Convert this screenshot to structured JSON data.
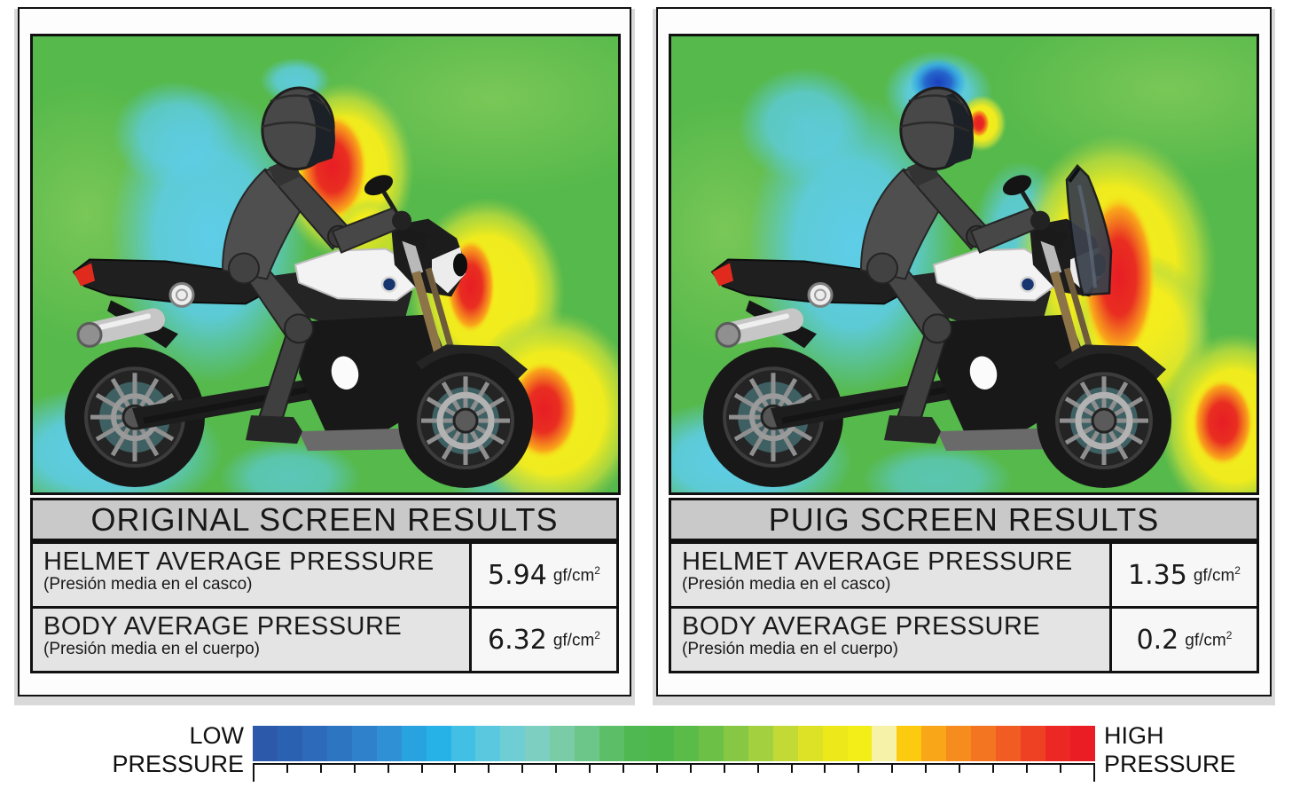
{
  "panels": [
    {
      "title": "ORIGINAL SCREEN RESULTS",
      "rows": [
        {
          "label": "HELMET AVERAGE PRESSURE",
          "sublabel": "(Presión media en el casco)",
          "value": "5.94",
          "unit": "gf/cm",
          "exp": "2"
        },
        {
          "label": "BODY AVERAGE PRESSURE",
          "sublabel": "(Presión media en el cuerpo)",
          "value": "6.32",
          "unit": "gf/cm",
          "exp": "2"
        }
      ]
    },
    {
      "title": "PUIG SCREEN RESULTS",
      "rows": [
        {
          "label": "HELMET AVERAGE PRESSURE",
          "sublabel": "(Presión media en el casco)",
          "value": "1.35",
          "unit": "gf/cm",
          "exp": "2"
        },
        {
          "label": "BODY AVERAGE PRESSURE",
          "sublabel": "(Presión media en el cuerpo)",
          "value": "0.2",
          "unit": "gf/cm",
          "exp": "2"
        }
      ]
    }
  ],
  "legend": {
    "low": [
      "LOW",
      "PRESSURE"
    ],
    "high": [
      "HIGH",
      "PRESSURE"
    ],
    "tick_count": 26,
    "colors": [
      "#2c59a9",
      "#2b61b1",
      "#2d6ab9",
      "#2e75c1",
      "#2f81cb",
      "#2f90d6",
      "#29a3e0",
      "#27b2e7",
      "#41bfe5",
      "#5ac8df",
      "#6fcdd4",
      "#7dcfc2",
      "#79cca6",
      "#6cc689",
      "#5dbe68",
      "#50b851",
      "#4db74a",
      "#5abb48",
      "#6dc046",
      "#86c843",
      "#a3d03f",
      "#c2d936",
      "#dde226",
      "#ede81a",
      "#f3ed18",
      "#f6f2a8",
      "#fccb10",
      "#faa619",
      "#f68b1e",
      "#f37421",
      "#f05c22",
      "#ee4123",
      "#ec2824",
      "#eb1d24"
    ]
  },
  "colors": {
    "map_background_green": "#56b94b",
    "low_pressure_cyan": "#5ecde8",
    "lowest_pressure_blue": "#1b3fbe",
    "high_pressure_red": "#e71d24",
    "high_pressure_yellow": "#f5ed1c"
  }
}
